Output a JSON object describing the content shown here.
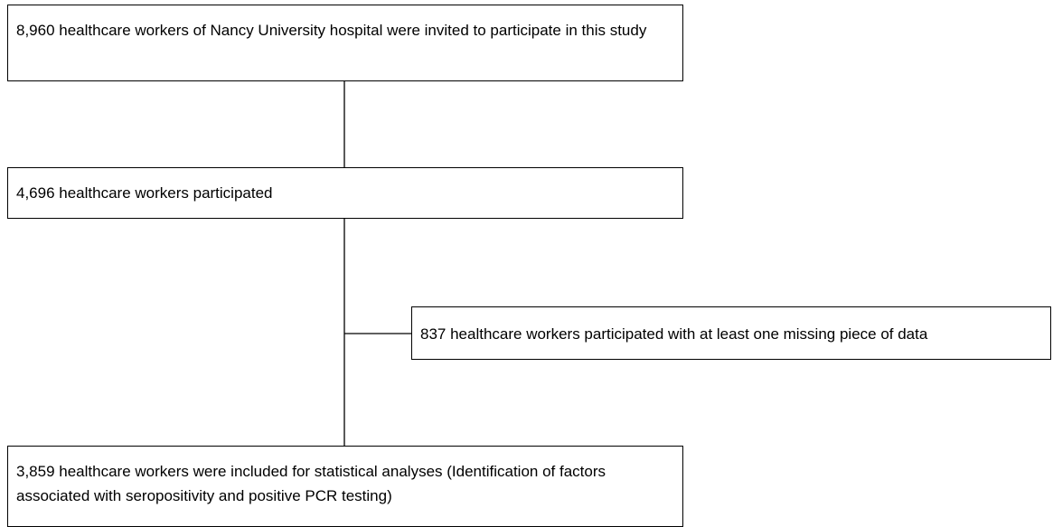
{
  "nodes": [
    {
      "label": "8,960 healthcare workers of Nancy University hospital were invited to participate in this study"
    },
    {
      "label": "4,696 healthcare workers participated"
    },
    {
      "label": "837 healthcare workers participated with at least one missing piece of data"
    },
    {
      "label": "3,859 healthcare workers were included for statistical analyses (Identification of factors associated with seropositivity and positive PCR testing)"
    }
  ]
}
